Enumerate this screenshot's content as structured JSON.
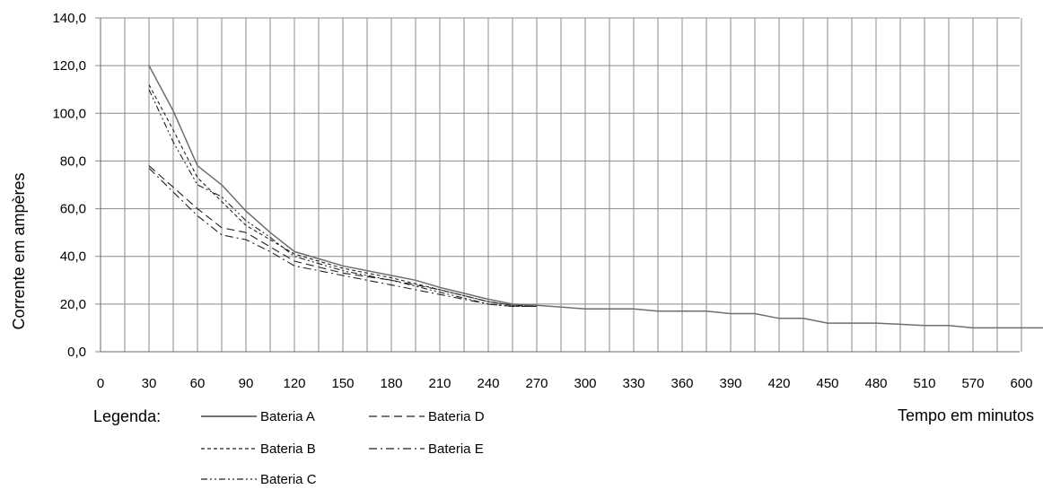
{
  "chart_data": {
    "type": "line",
    "x": [
      "0",
      "30",
      "60",
      "90",
      "120",
      "150",
      "180",
      "210",
      "240",
      "270",
      "300",
      "330",
      "360",
      "390",
      "420",
      "450",
      "480",
      "510",
      "570",
      "600"
    ],
    "ylim": [
      0,
      140
    ],
    "yticks": [
      "0,0",
      "20,0",
      "40,0",
      "60,0",
      "80,0",
      "100,0",
      "120,0",
      "140,0"
    ],
    "ylabel": "Corrente em ampères",
    "xlabel": "Tempo em minutos",
    "legend_title": "Legenda:",
    "grid": true,
    "legend_position": "bottom-left",
    "series": [
      {
        "name": "Bateria A",
        "dash": "solid",
        "color": "#6e6e6e",
        "points": [
          [
            30,
            120
          ],
          [
            45,
            101
          ],
          [
            60,
            78
          ],
          [
            75,
            70
          ],
          [
            90,
            59
          ],
          [
            105,
            50
          ],
          [
            120,
            42
          ],
          [
            150,
            36
          ],
          [
            180,
            32
          ],
          [
            195,
            30
          ],
          [
            210,
            27
          ],
          [
            240,
            22
          ],
          [
            255,
            20
          ],
          [
            270,
            19.5
          ],
          [
            300,
            18
          ],
          [
            330,
            18
          ],
          [
            345,
            17
          ],
          [
            360,
            17
          ],
          [
            375,
            17
          ],
          [
            390,
            16
          ],
          [
            405,
            16
          ],
          [
            420,
            14
          ],
          [
            435,
            14
          ],
          [
            450,
            12
          ],
          [
            465,
            12
          ],
          [
            480,
            12
          ],
          [
            495,
            11.5
          ],
          [
            510,
            11
          ],
          [
            525,
            11
          ],
          [
            540,
            10
          ],
          [
            570,
            10
          ],
          [
            600,
            10
          ]
        ]
      },
      {
        "name": "Bateria B",
        "dash": "short",
        "color": "#222222",
        "points": [
          [
            30,
            112
          ],
          [
            45,
            93
          ],
          [
            60,
            73
          ],
          [
            75,
            63
          ],
          [
            90,
            53
          ],
          [
            105,
            47
          ],
          [
            120,
            41
          ],
          [
            150,
            35
          ],
          [
            180,
            31
          ],
          [
            210,
            26
          ],
          [
            240,
            21
          ],
          [
            255,
            19.5
          ],
          [
            270,
            19
          ]
        ]
      },
      {
        "name": "Bateria C",
        "dash": "dashdotdot",
        "color": "#222222",
        "points": [
          [
            30,
            110
          ],
          [
            45,
            88
          ],
          [
            60,
            70
          ],
          [
            75,
            65
          ],
          [
            90,
            55
          ],
          [
            105,
            48
          ],
          [
            120,
            40
          ],
          [
            150,
            34
          ],
          [
            180,
            30
          ],
          [
            210,
            25
          ],
          [
            240,
            20
          ],
          [
            255,
            19
          ],
          [
            270,
            19
          ]
        ]
      },
      {
        "name": "Bateria D",
        "dash": "long",
        "color": "#222222",
        "points": [
          [
            30,
            78
          ],
          [
            45,
            69
          ],
          [
            60,
            60
          ],
          [
            75,
            52
          ],
          [
            90,
            50
          ],
          [
            105,
            44
          ],
          [
            120,
            38
          ],
          [
            150,
            33
          ],
          [
            180,
            30
          ],
          [
            210,
            26
          ],
          [
            240,
            21
          ],
          [
            255,
            19.5
          ],
          [
            270,
            19
          ]
        ]
      },
      {
        "name": "Bateria E",
        "dash": "dashdot",
        "color": "#222222",
        "points": [
          [
            30,
            77
          ],
          [
            45,
            67
          ],
          [
            60,
            57
          ],
          [
            75,
            49
          ],
          [
            90,
            47
          ],
          [
            105,
            42
          ],
          [
            120,
            36
          ],
          [
            150,
            32
          ],
          [
            180,
            28
          ],
          [
            210,
            24
          ],
          [
            240,
            20
          ],
          [
            255,
            19
          ],
          [
            270,
            19
          ]
        ]
      }
    ]
  }
}
